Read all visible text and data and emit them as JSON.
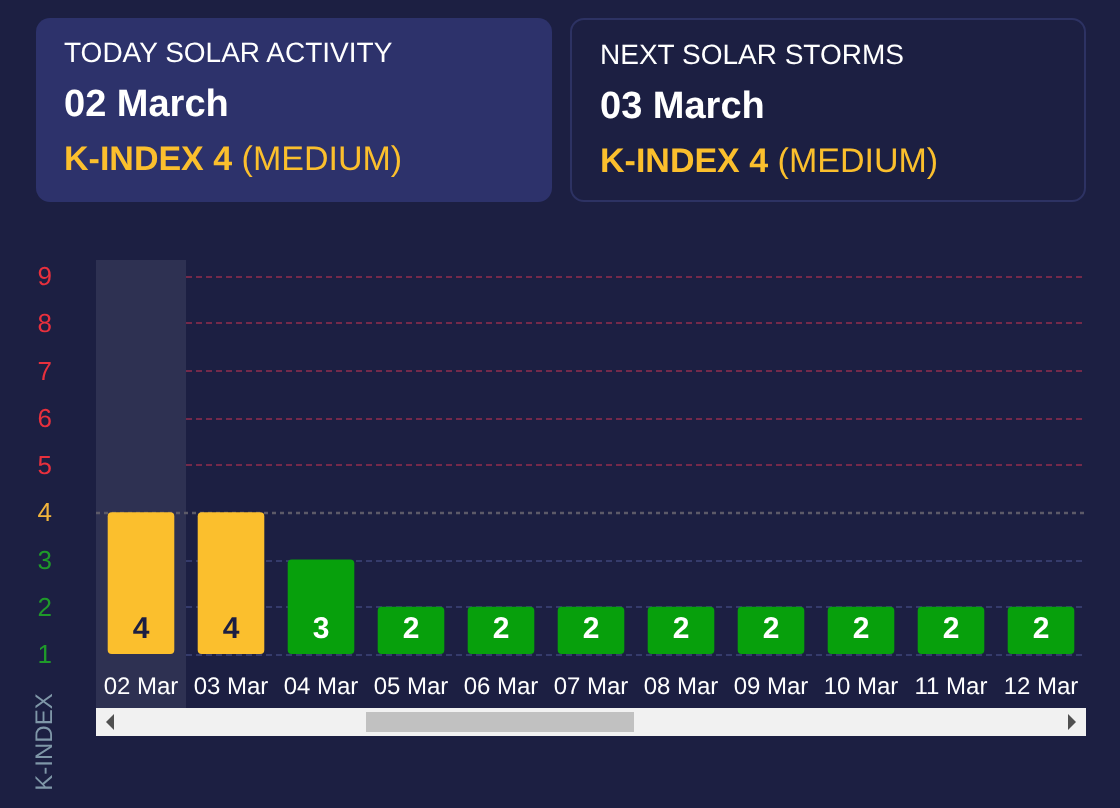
{
  "chart_data": [
    {
      "type": "other",
      "title": "TODAY SOLAR ACTIVITY",
      "subtitle": "02 March",
      "annotations": [
        "K-INDEX 4",
        "(MEDIUM)"
      ]
    },
    {
      "type": "other",
      "title": "NEXT SOLAR STORMS",
      "subtitle": "03 March",
      "annotations": [
        "K-INDEX 4",
        "(MEDIUM)"
      ]
    },
    {
      "type": "bar",
      "ylabel": "K-INDEX",
      "categories": [
        "02 Mar",
        "03 Mar",
        "04 Mar",
        "05 Mar",
        "06 Mar",
        "07 Mar",
        "08 Mar",
        "09 Mar",
        "10 Mar",
        "11 Mar",
        "12 Mar"
      ],
      "values": [
        4,
        4,
        3,
        2,
        2,
        2,
        2,
        2,
        2,
        2,
        2
      ],
      "colors": [
        "#fbbf2d",
        "#fbbf2d",
        "#07a00c",
        "#07a00c",
        "#07a00c",
        "#07a00c",
        "#07a00c",
        "#07a00c",
        "#07a00c",
        "#07a00c",
        "#07a00c"
      ],
      "ylim": [
        1,
        9
      ],
      "yticks": [
        1,
        2,
        3,
        4,
        5,
        6,
        7,
        8,
        9
      ],
      "grid": "y",
      "data_labels": true,
      "ref_lines": [
        {
          "axis": "y",
          "value": 4,
          "color": "#5c5a68",
          "line_style": "dotted"
        }
      ],
      "bands": [
        {
          "axis": "x",
          "from": "02 Mar",
          "to": "02 Mar",
          "color": "#2e3152"
        }
      ]
    }
  ]
}
